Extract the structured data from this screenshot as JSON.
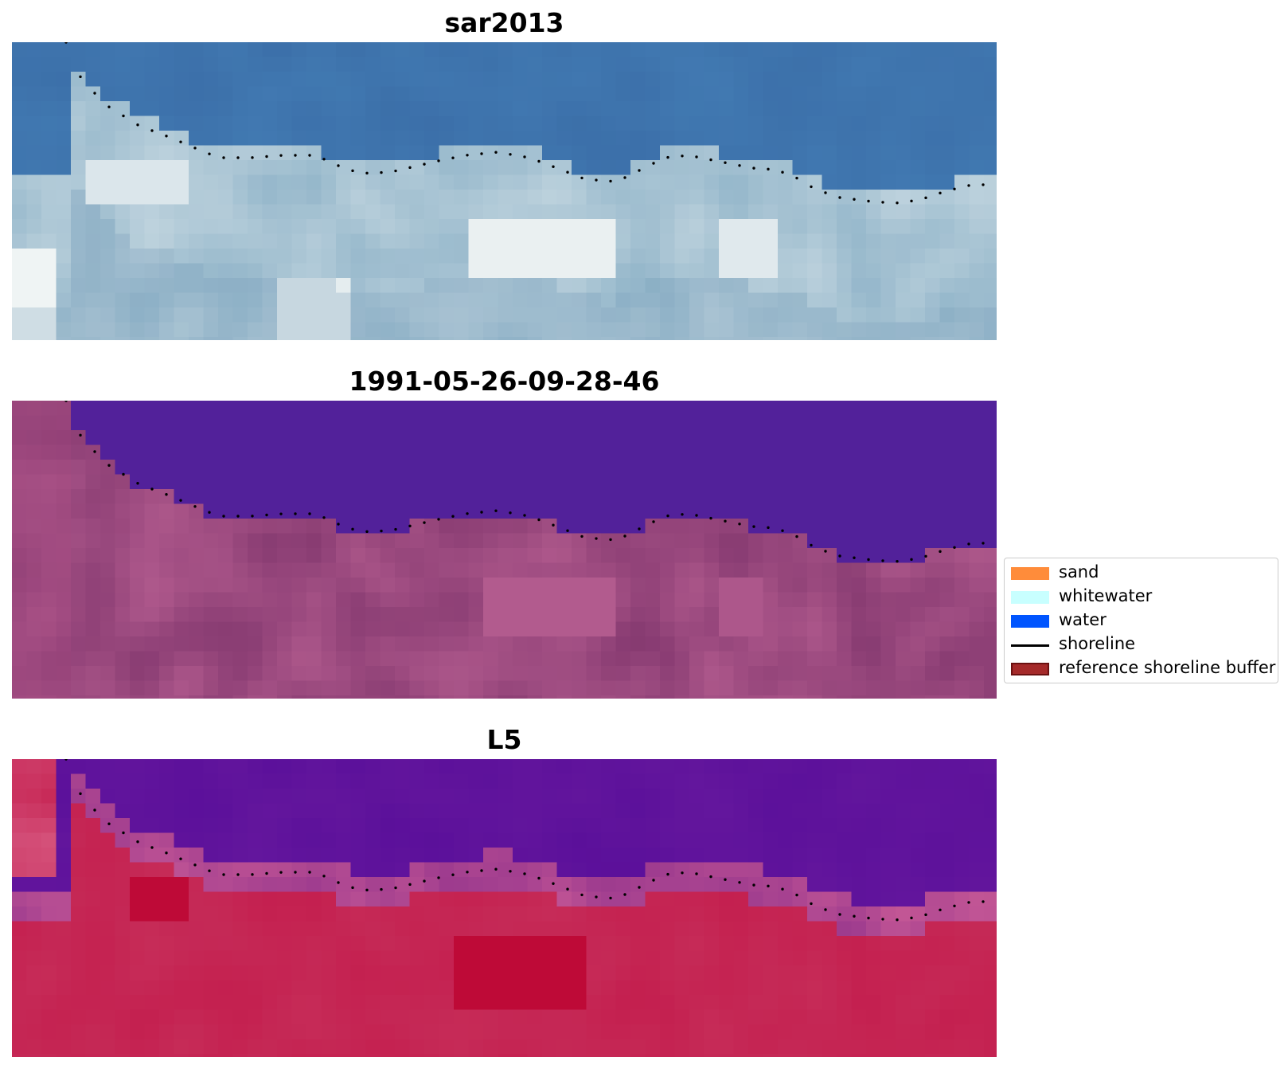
{
  "panels": [
    {
      "title": "sar2013"
    },
    {
      "title": "1991-05-26-09-28-46"
    },
    {
      "title": "L5"
    }
  ],
  "legend": {
    "items": [
      {
        "label": "sand",
        "kind": "patch",
        "color": "#ff8c3a"
      },
      {
        "label": "whitewater",
        "kind": "patch",
        "color": "#c8ffff"
      },
      {
        "label": "water",
        "kind": "patch",
        "color": "#0055ff"
      },
      {
        "label": "shoreline",
        "kind": "line",
        "color": "#000000"
      },
      {
        "label": "reference shoreline buffer",
        "kind": "patch",
        "color": "#a52a2a"
      }
    ]
  },
  "colors": {
    "sar_water": "#3b6ea8",
    "sar_land": "#8fb3c8",
    "sar_bright": "#f4f7f6",
    "mask_water": "#52219a",
    "mask_land": "#9a4a85",
    "l5_water": "#5a0f9a",
    "l5_land": "#c41e4e",
    "shoreline_dots": "#000000"
  }
}
